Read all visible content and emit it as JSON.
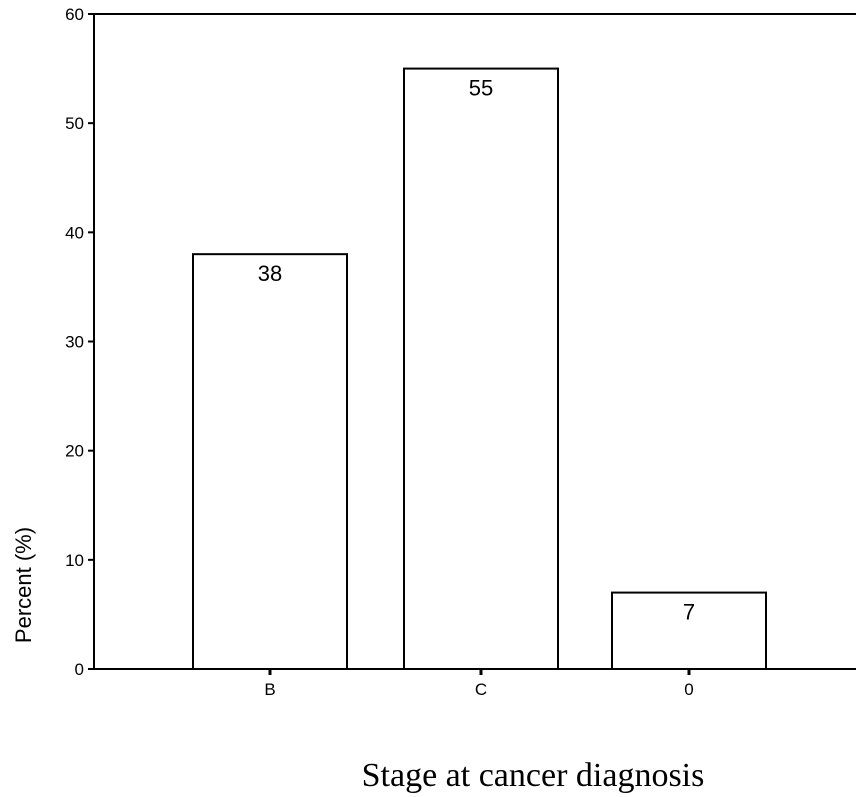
{
  "chart_data": {
    "type": "bar",
    "title": "",
    "xlabel": "Stage at cancer diagnosis",
    "ylabel": "Percent (%)",
    "categories": [
      "B",
      "C",
      "0"
    ],
    "values": [
      38,
      55,
      7
    ],
    "data_labels": [
      "38",
      "55",
      "7"
    ],
    "ylim": [
      0,
      60
    ],
    "yticks": [
      0,
      10,
      20,
      30,
      40,
      50,
      60
    ],
    "grid": false,
    "bar_fill": "#ffffff",
    "bar_stroke": "#000000"
  }
}
